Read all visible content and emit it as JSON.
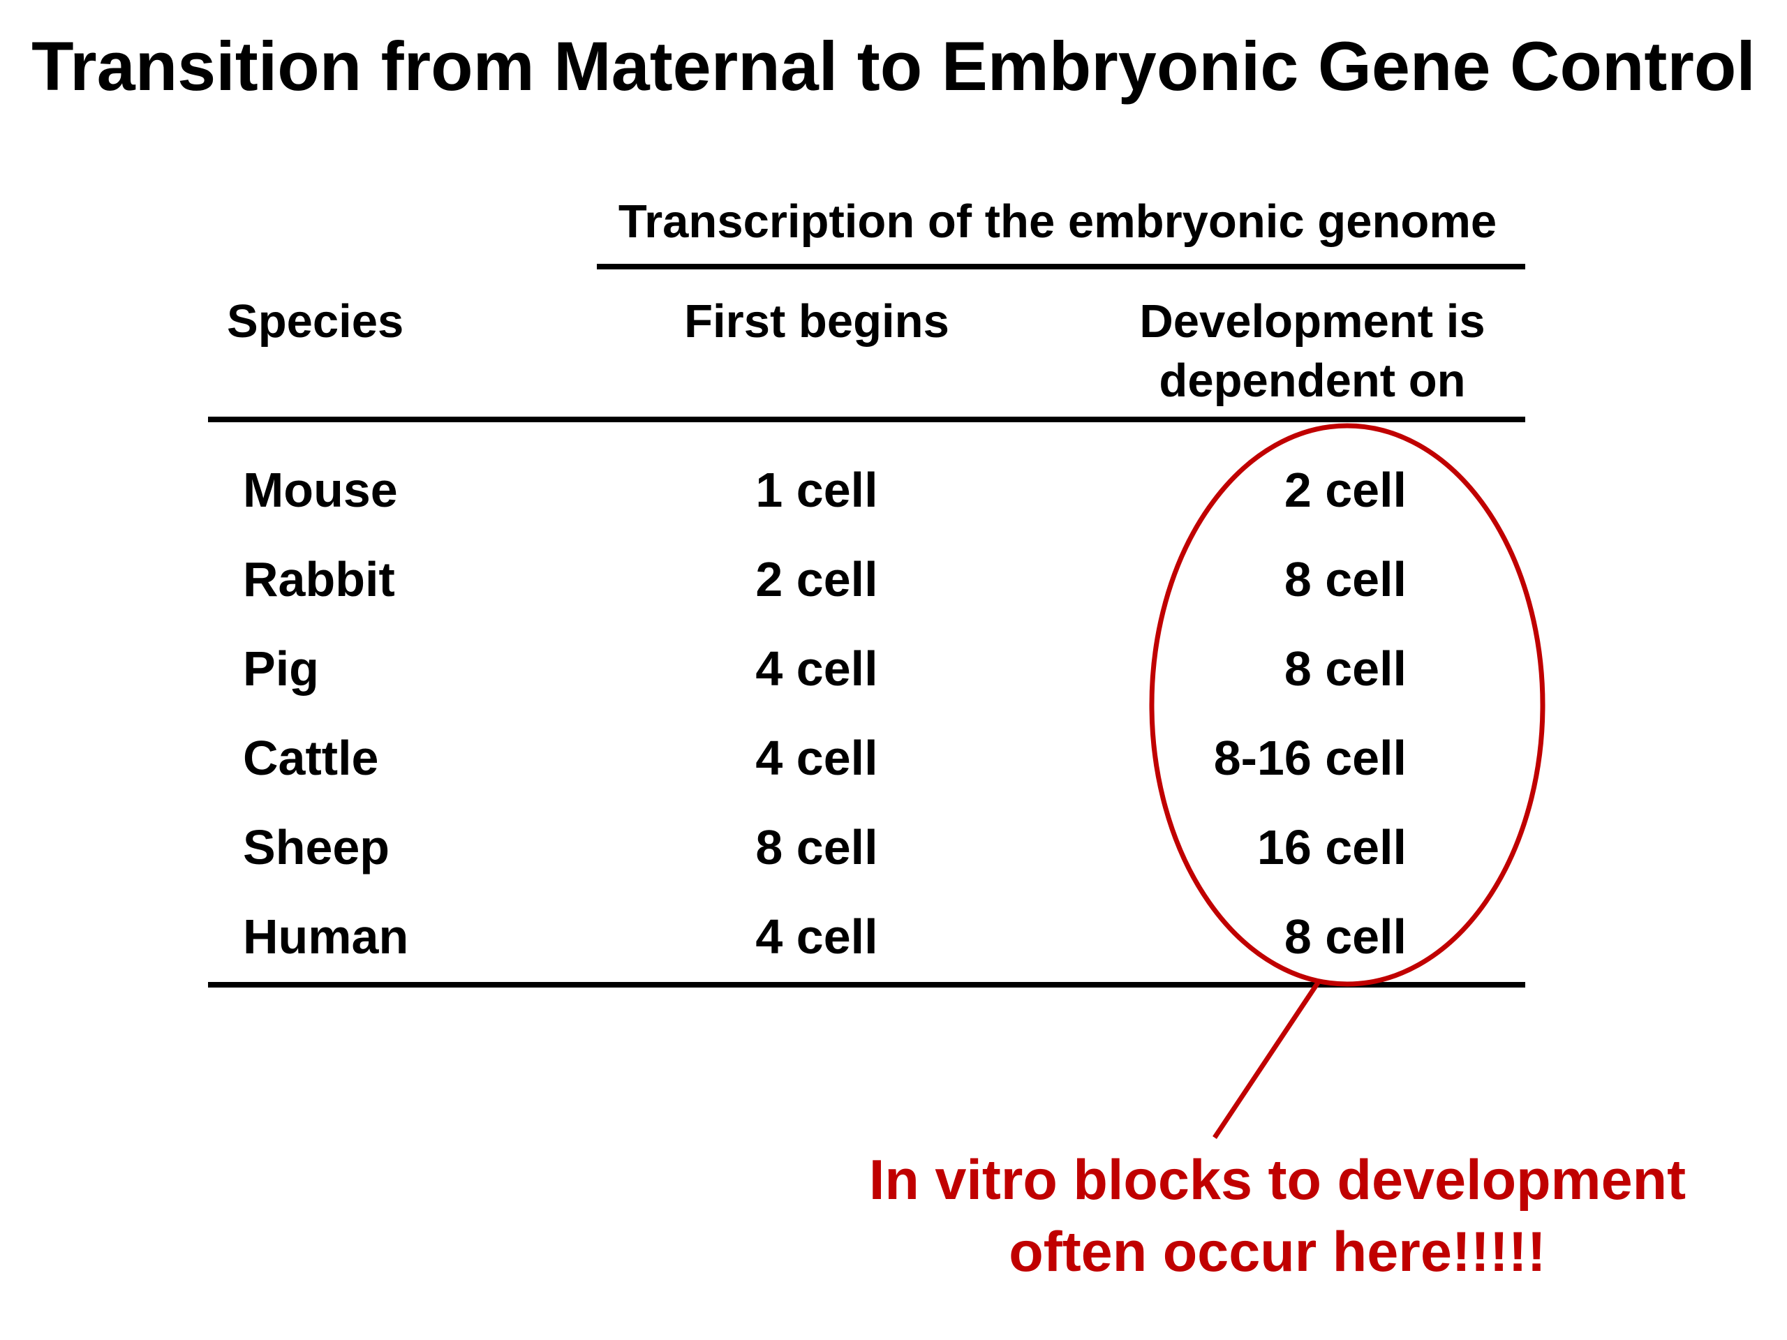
{
  "title": "Transition from Maternal to Embryonic Gene Control",
  "table": {
    "group_header": "Transcription of the embryonic genome",
    "columns": {
      "species": "Species",
      "first_begins": "First begins",
      "development_line1": "Development is",
      "development_line2": "dependent on"
    },
    "rows": [
      {
        "species": "Mouse",
        "first_begins": "1 cell",
        "dependent_on": "2 cell"
      },
      {
        "species": "Rabbit",
        "first_begins": "2 cell",
        "dependent_on": "8 cell"
      },
      {
        "species": "Pig",
        "first_begins": "4 cell",
        "dependent_on": "8 cell"
      },
      {
        "species": "Cattle",
        "first_begins": "4 cell",
        "dependent_on": "8-16 cell"
      },
      {
        "species": "Sheep",
        "first_begins": "8 cell",
        "dependent_on": "16 cell"
      },
      {
        "species": "Human",
        "first_begins": "4 cell",
        "dependent_on": "8 cell"
      }
    ]
  },
  "callout": {
    "line1": "In vitro blocks to development",
    "line2": "often occur here!!!!!",
    "color": "#c00000"
  }
}
